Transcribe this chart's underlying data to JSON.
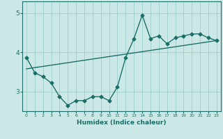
{
  "xlabel": "Humidex (Indice chaleur)",
  "ylabel": "",
  "xlim": [
    -0.5,
    23.5
  ],
  "ylim": [
    2.5,
    5.3
  ],
  "yticks": [
    3,
    4,
    5
  ],
  "xticks": [
    0,
    1,
    2,
    3,
    4,
    5,
    6,
    7,
    8,
    9,
    10,
    11,
    12,
    13,
    14,
    15,
    16,
    17,
    18,
    19,
    20,
    21,
    22,
    23
  ],
  "bg_color": "#cce8e6",
  "line_color": "#1a6e68",
  "grid_color": "#9dcfcb",
  "data_line1": {
    "x": [
      0,
      1,
      2,
      3,
      4,
      5,
      6,
      7,
      8,
      9,
      10,
      11,
      12,
      13,
      14,
      15,
      16,
      17,
      18,
      19,
      20,
      21,
      22,
      23
    ],
    "y": [
      3.87,
      3.48,
      3.38,
      3.22,
      2.87,
      2.65,
      2.77,
      2.77,
      2.87,
      2.87,
      2.77,
      3.12,
      3.87,
      4.35,
      4.95,
      4.35,
      4.42,
      4.22,
      4.37,
      4.42,
      4.47,
      4.47,
      4.37,
      4.3
    ]
  },
  "data_line2": {
    "x": [
      0,
      23
    ],
    "y": [
      3.58,
      4.3
    ]
  },
  "marker": "D",
  "marker_size": 2.5,
  "line_width": 1.0
}
